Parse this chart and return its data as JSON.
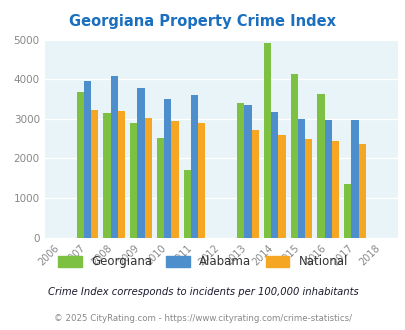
{
  "title": "Georgiana Property Crime Index",
  "years": [
    2006,
    2007,
    2008,
    2009,
    2010,
    2011,
    2012,
    2013,
    2014,
    2015,
    2016,
    2017,
    2018
  ],
  "data_years": [
    2007,
    2008,
    2009,
    2010,
    2011,
    2013,
    2014,
    2015,
    2016,
    2017
  ],
  "georgiana": [
    3680,
    3150,
    2900,
    2520,
    1700,
    3400,
    4920,
    4130,
    3620,
    1360
  ],
  "alabama": [
    3950,
    4070,
    3780,
    3500,
    3600,
    3350,
    3160,
    3000,
    2960,
    2970
  ],
  "national": [
    3220,
    3200,
    3020,
    2940,
    2900,
    2720,
    2600,
    2490,
    2450,
    2360
  ],
  "color_georgiana": "#7dc142",
  "color_alabama": "#4d8fcc",
  "color_national": "#f5a623",
  "ylim": [
    0,
    5000
  ],
  "yticks": [
    0,
    1000,
    2000,
    3000,
    4000,
    5000
  ],
  "bg_color": "#e8f4f8",
  "grid_color": "#ffffff",
  "title_color": "#1a6fbf",
  "footnote1": "Crime Index corresponds to incidents per 100,000 inhabitants",
  "footnote2": "© 2025 CityRating.com - https://www.cityrating.com/crime-statistics/",
  "bar_width": 0.27
}
